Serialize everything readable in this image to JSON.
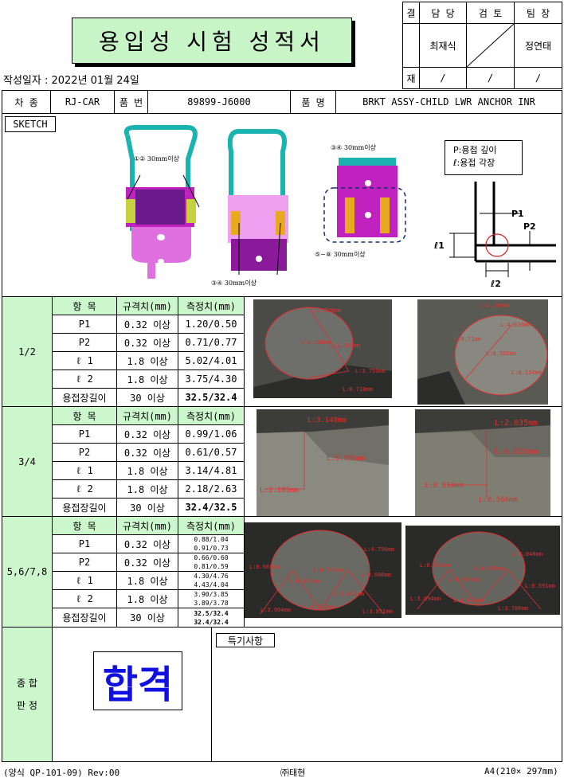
{
  "document": {
    "title": "용입성 시험 성적서",
    "date_label": "작성일자 : 2022년 01월 24일",
    "approval": {
      "side_top": "결",
      "side_bottom": "재",
      "headers": [
        "담 당",
        "검 토",
        "팀 장"
      ],
      "names": [
        "최재식",
        "",
        "정연태"
      ],
      "dates": [
        "/",
        "/",
        "/"
      ]
    },
    "info": {
      "car_label": "차 종",
      "car_value": "RJ-CAR",
      "part_no_label": "품 번",
      "part_no_value": "89899-J6000",
      "part_name_label": "품 명",
      "part_name_value": "BRKT ASSY-CHILD LWR ANCHOR INR"
    },
    "sketch": {
      "label": "SKETCH",
      "note1": "①② 30mm이상",
      "note2": "③④ 30mm이상",
      "note3": "③④ 30mm이상",
      "note4": "⑤~⑧ 30mm이상",
      "legend_p": "P:용접 깊이",
      "legend_l": "ℓ:용접 각장",
      "diag_p1": "P1",
      "diag_p2": "P2",
      "diag_l1": "ℓ1",
      "diag_l2": "ℓ2"
    },
    "table_headers": [
      "항  목",
      "규격치(mm)",
      "측정치(mm)"
    ],
    "sections": [
      {
        "name": "1/2",
        "rows": [
          {
            "item": "P1",
            "spec": "0.32 이상",
            "meas": "1.20/0.50"
          },
          {
            "item": "P2",
            "spec": "0.32 이상",
            "meas": "0.71/0.77"
          },
          {
            "item": "ℓ 1",
            "spec": "1.8 이상",
            "meas": "5.02/4.01"
          },
          {
            "item": "ℓ 2",
            "spec": "1.8 이상",
            "meas": "3.75/4.30"
          },
          {
            "item": "용접장길이",
            "spec": "30 이상",
            "meas": "32.5/32.4"
          }
        ],
        "photo_labels_left": [
          "L:5.029mm",
          "L:6.108mm",
          "L:1.287mm",
          "L:3.759mm",
          "L:0.718mm"
        ],
        "photo_labels_right": [
          "L:4.305mm",
          "L:4.010mm",
          "L:0.71mm",
          "L:0.502mm",
          "L:0.524mm"
        ]
      },
      {
        "name": "3/4",
        "rows": [
          {
            "item": "P1",
            "spec": "0.32 이상",
            "meas": "0.99/1.06"
          },
          {
            "item": "P2",
            "spec": "0.32 이상",
            "meas": "0.61/0.57"
          },
          {
            "item": "ℓ 1",
            "spec": "1.8 이상",
            "meas": "3.14/4.81"
          },
          {
            "item": "ℓ 2",
            "spec": "1.8 이상",
            "meas": "2.18/2.63"
          },
          {
            "item": "용접장길이",
            "spec": "30 이상",
            "meas": "32.4/32.5"
          }
        ],
        "photo_labels_left": [
          "L:3.148mm",
          "L:0.996mm",
          "L:2.185mm"
        ],
        "photo_labels_right": [
          "L:2.635mm",
          "L:4.828mm",
          "L:0.610mm",
          "L:0.566mm"
        ]
      },
      {
        "name": "5,6/7,8",
        "rows": [
          {
            "item": "P1",
            "spec": "0.32 이상",
            "meas1": "0.88/1.04",
            "meas2": "0.91/0.73"
          },
          {
            "item": "P2",
            "spec": "0.32 이상",
            "meas1": "0.66/0.60",
            "meas2": "0.81/0.59"
          },
          {
            "item": "ℓ 1",
            "spec": "1.8 이상",
            "meas1": "4.30/4.76",
            "meas2": "4.43/4.04"
          },
          {
            "item": "ℓ 2",
            "spec": "1.8 이상",
            "meas1": "3.90/3.85",
            "meas2": "3.89/3.78"
          },
          {
            "item": "용접장길이",
            "spec": "30 이상",
            "meas1": "32.5/32.4",
            "meas2": "32.4/32.4"
          }
        ],
        "photo_labels_left": [
          "L:4.796mm",
          "L:0.660mm",
          "L:6.787mm",
          "L:0.886mm",
          "L:0.600mm",
          "L:3.904mm",
          "L:4.307mm",
          "L:3.849mm",
          "L:3.851mm"
        ],
        "photo_labels_right": [
          "L:4.048mm",
          "L:0.613mm",
          "L:6.811mm",
          "L:0.919mm",
          "L:0.591mm",
          "L:3.894mm",
          "L:4.431mm",
          "L:3.786mm"
        ]
      }
    ],
    "judgement": {
      "label_line1": "종 합",
      "label_line2": "판 정",
      "result": "합격",
      "remarks_label": "특기사항"
    },
    "footer": {
      "form_no": "(양식 QP-101-09) Rev:00",
      "company": "㈜태현",
      "paper": "A4(210× 297mm)"
    }
  }
}
